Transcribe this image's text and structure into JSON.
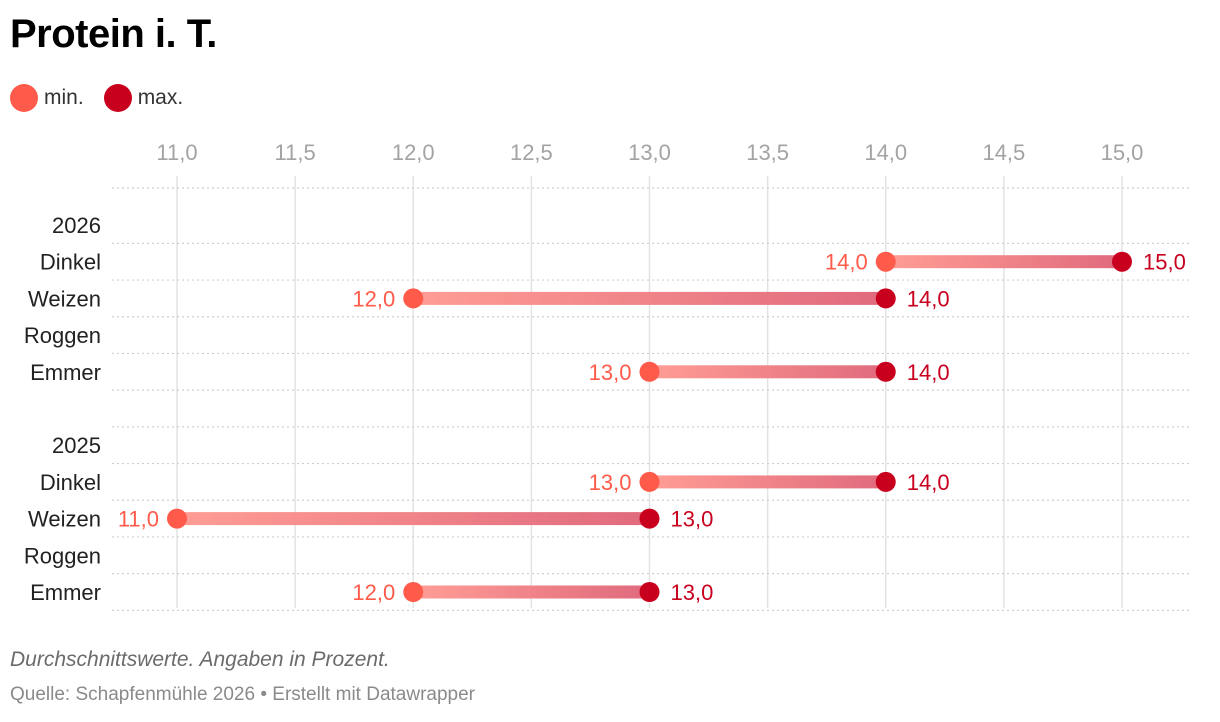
{
  "chart_data": {
    "type": "dot-range",
    "title": "Protein i. T.",
    "legend": [
      {
        "label": "min.",
        "color": "#ff5a4a"
      },
      {
        "label": "max.",
        "color": "#c8001e"
      }
    ],
    "xlim": [
      11.0,
      15.0
    ],
    "x_ticks": [
      "11,0",
      "11,5",
      "12,0",
      "12,5",
      "13,0",
      "13,5",
      "14,0",
      "14,5",
      "15,0"
    ],
    "x_tick_values": [
      11.0,
      11.5,
      12.0,
      12.5,
      13.0,
      13.5,
      14.0,
      14.5,
      15.0
    ],
    "rows": [
      {
        "label": "2026",
        "group": true
      },
      {
        "label": "Dinkel",
        "min": 14.0,
        "max": 15.0,
        "min_label": "14,0",
        "max_label": "15,0"
      },
      {
        "label": "Weizen",
        "min": 12.0,
        "max": 14.0,
        "min_label": "12,0",
        "max_label": "14,0"
      },
      {
        "label": "Roggen"
      },
      {
        "label": "Emmer",
        "min": 13.0,
        "max": 14.0,
        "min_label": "13,0",
        "max_label": "14,0"
      },
      {
        "label": "",
        "spacer": true
      },
      {
        "label": "2025",
        "group": true
      },
      {
        "label": "Dinkel",
        "min": 13.0,
        "max": 14.0,
        "min_label": "13,0",
        "max_label": "14,0"
      },
      {
        "label": "Weizen",
        "min": 11.0,
        "max": 13.0,
        "min_label": "11,0",
        "max_label": "13,0"
      },
      {
        "label": "Roggen"
      },
      {
        "label": "Emmer",
        "min": 12.0,
        "max": 13.0,
        "min_label": "12,0",
        "max_label": "13,0"
      }
    ],
    "grid": true,
    "legend_position": "top-left"
  },
  "notes": "Durchschnittswerte. Angaben in Prozent.",
  "source": "Quelle: Schapfenmühle 2026 • Erstellt mit Datawrapper"
}
